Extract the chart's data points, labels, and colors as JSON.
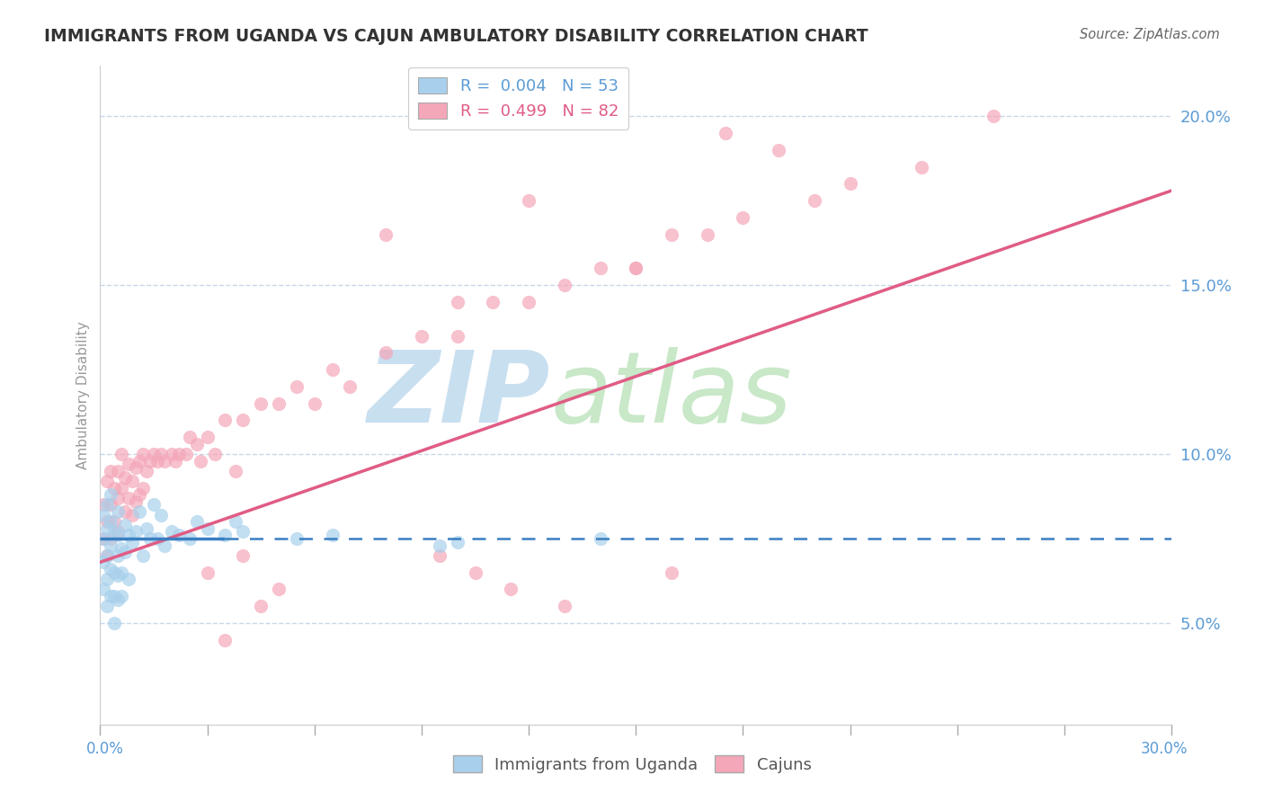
{
  "title": "IMMIGRANTS FROM UGANDA VS CAJUN AMBULATORY DISABILITY CORRELATION CHART",
  "source": "Source: ZipAtlas.com",
  "ylabel": "Ambulatory Disability",
  "ytick_vals": [
    0.05,
    0.1,
    0.15,
    0.2
  ],
  "xlim": [
    0.0,
    0.3
  ],
  "ylim": [
    0.02,
    0.215
  ],
  "legend_blue_label": "R =  0.004   N = 53",
  "legend_pink_label": "R =  0.499   N = 82",
  "legend_bottom_blue": "Immigrants from Uganda",
  "legend_bottom_pink": "Cajuns",
  "blue_color": "#a8d0ec",
  "pink_color": "#f4a7b9",
  "blue_line_color": "#3a7fc1",
  "pink_line_color": "#e05c85",
  "title_color": "#333333",
  "axis_color": "#5b9bd5",
  "source_color": "#666666",
  "watermark_zip_color": "#c8dff0",
  "watermark_atlas_color": "#c8e8c8",
  "grid_color": "#c8d8e8",
  "blue_trend_x": [
    0.0,
    0.3
  ],
  "blue_trend_y": [
    0.075,
    0.075
  ],
  "blue_trend_solid_end": 0.035,
  "pink_trend_x": [
    0.0,
    0.3
  ],
  "pink_trend_y": [
    0.068,
    0.178
  ],
  "blue_scatter_x": [
    0.001,
    0.001,
    0.001,
    0.001,
    0.002,
    0.002,
    0.002,
    0.002,
    0.002,
    0.003,
    0.003,
    0.003,
    0.003,
    0.003,
    0.004,
    0.004,
    0.004,
    0.004,
    0.005,
    0.005,
    0.005,
    0.005,
    0.005,
    0.006,
    0.006,
    0.006,
    0.007,
    0.007,
    0.008,
    0.008,
    0.009,
    0.01,
    0.011,
    0.012,
    0.013,
    0.014,
    0.015,
    0.016,
    0.017,
    0.018,
    0.02,
    0.022,
    0.025,
    0.027,
    0.03,
    0.035,
    0.038,
    0.04,
    0.055,
    0.065,
    0.095,
    0.1,
    0.14
  ],
  "blue_scatter_y": [
    0.075,
    0.082,
    0.068,
    0.06,
    0.078,
    0.085,
    0.07,
    0.063,
    0.055,
    0.08,
    0.073,
    0.066,
    0.058,
    0.088,
    0.077,
    0.065,
    0.058,
    0.05,
    0.083,
    0.076,
    0.07,
    0.064,
    0.057,
    0.072,
    0.065,
    0.058,
    0.079,
    0.071,
    0.076,
    0.063,
    0.074,
    0.077,
    0.083,
    0.07,
    0.078,
    0.075,
    0.085,
    0.075,
    0.082,
    0.073,
    0.077,
    0.076,
    0.075,
    0.08,
    0.078,
    0.076,
    0.08,
    0.077,
    0.075,
    0.076,
    0.073,
    0.074,
    0.075
  ],
  "pink_scatter_x": [
    0.001,
    0.001,
    0.002,
    0.002,
    0.002,
    0.003,
    0.003,
    0.003,
    0.004,
    0.004,
    0.005,
    0.005,
    0.005,
    0.006,
    0.006,
    0.007,
    0.007,
    0.008,
    0.008,
    0.009,
    0.009,
    0.01,
    0.01,
    0.011,
    0.011,
    0.012,
    0.012,
    0.013,
    0.014,
    0.015,
    0.016,
    0.017,
    0.018,
    0.02,
    0.021,
    0.022,
    0.024,
    0.025,
    0.027,
    0.028,
    0.03,
    0.032,
    0.035,
    0.038,
    0.04,
    0.045,
    0.05,
    0.055,
    0.06,
    0.065,
    0.07,
    0.08,
    0.09,
    0.1,
    0.11,
    0.12,
    0.13,
    0.14,
    0.15,
    0.16,
    0.17,
    0.18,
    0.1,
    0.2,
    0.21,
    0.23,
    0.25,
    0.08,
    0.12,
    0.15,
    0.175,
    0.19,
    0.03,
    0.035,
    0.04,
    0.045,
    0.05,
    0.095,
    0.105,
    0.115,
    0.13,
    0.16
  ],
  "pink_scatter_y": [
    0.085,
    0.075,
    0.092,
    0.08,
    0.07,
    0.095,
    0.085,
    0.075,
    0.09,
    0.08,
    0.095,
    0.087,
    0.077,
    0.1,
    0.09,
    0.093,
    0.083,
    0.097,
    0.087,
    0.092,
    0.082,
    0.096,
    0.086,
    0.098,
    0.088,
    0.1,
    0.09,
    0.095,
    0.098,
    0.1,
    0.098,
    0.1,
    0.098,
    0.1,
    0.098,
    0.1,
    0.1,
    0.105,
    0.103,
    0.098,
    0.105,
    0.1,
    0.11,
    0.095,
    0.11,
    0.115,
    0.115,
    0.12,
    0.115,
    0.125,
    0.12,
    0.13,
    0.135,
    0.135,
    0.145,
    0.145,
    0.15,
    0.155,
    0.155,
    0.165,
    0.165,
    0.17,
    0.145,
    0.175,
    0.18,
    0.185,
    0.2,
    0.165,
    0.175,
    0.155,
    0.195,
    0.19,
    0.065,
    0.045,
    0.07,
    0.055,
    0.06,
    0.07,
    0.065,
    0.06,
    0.055,
    0.065
  ]
}
